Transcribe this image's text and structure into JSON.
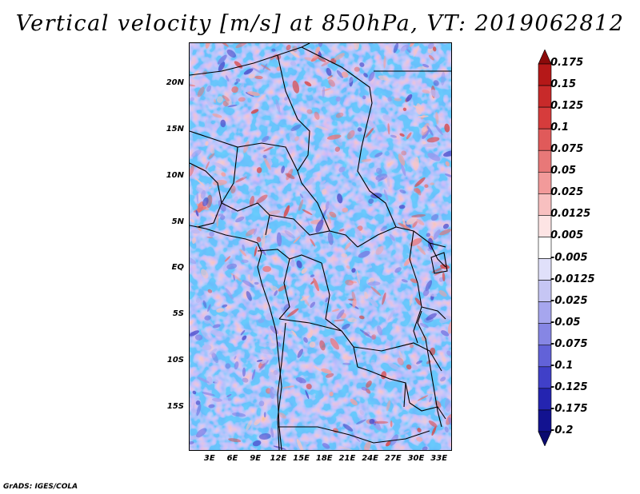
{
  "title": "Vertical velocity [m/s] at 850hPa, VT: 2019062812",
  "footer": "GrADS: IGES/COLA",
  "map": {
    "lat_labels": [
      "20N",
      "15N",
      "10N",
      "5N",
      "EQ",
      "5S",
      "10S",
      "15S"
    ],
    "lat_values": [
      20,
      15,
      10,
      5,
      0,
      -5,
      -10,
      -15
    ],
    "lon_labels": [
      "3E",
      "6E",
      "9E",
      "12E",
      "15E",
      "18E",
      "21E",
      "24E",
      "27E",
      "30E",
      "33E"
    ],
    "lon_values": [
      3,
      6,
      9,
      12,
      15,
      18,
      21,
      24,
      27,
      30,
      33
    ]
  },
  "colorbar": {
    "labels": [
      "0.175",
      "0.15",
      "0.125",
      "0.1",
      "0.075",
      "0.05",
      "0.025",
      "0.0125",
      "0.005",
      "-0.005",
      "-0.0125",
      "-0.025",
      "-0.05",
      "-0.075",
      "-0.1",
      "-0.125",
      "-0.175",
      "-0.2"
    ],
    "colors": [
      "#8b0a0a",
      "#b51818",
      "#c82a2a",
      "#d63c3c",
      "#e05a5a",
      "#e87878",
      "#f29a9a",
      "#f8c0c0",
      "#fde4e4",
      "#ffffff",
      "#e0e0fa",
      "#c6c6f4",
      "#a6a6ee",
      "#8686e4",
      "#6262d8",
      "#4040c8",
      "#2424b0",
      "#121290",
      "#0a0a70"
    ]
  }
}
